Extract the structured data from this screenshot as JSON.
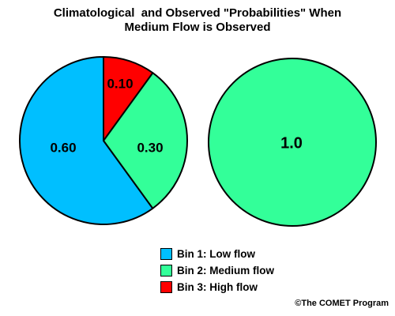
{
  "chart_data": [
    {
      "type": "pie",
      "categories": [
        "Bin 1: Low flow",
        "Bin 2: Medium flow",
        "Bin 3: High flow"
      ],
      "values": [
        0.6,
        0.3,
        0.1
      ],
      "data_labels": [
        "0.60",
        "0.30",
        "0.10"
      ],
      "colors": [
        "#00BFFF",
        "#33FF99",
        "#FF0000"
      ],
      "start_angle_deg": 0,
      "direction": "counterclockwise"
    },
    {
      "type": "pie",
      "categories": [
        "Bin 2: Medium flow"
      ],
      "values": [
        1.0
      ],
      "data_labels": [
        "1.0"
      ],
      "colors": [
        "#33FF99"
      ]
    }
  ],
  "title": {
    "line1": "Climatological  and Observed \"Probabilities\" When",
    "line2": "Medium Flow is Observed"
  },
  "legend": {
    "placement": "bottom-center",
    "items": [
      {
        "label": "Bin 1: Low flow",
        "color": "#00BFFF"
      },
      {
        "label": "Bin 2: Medium flow",
        "color": "#33FF99"
      },
      {
        "label": "Bin 3: High flow",
        "color": "#FF0000"
      }
    ]
  },
  "credit": "©The COMET Program"
}
